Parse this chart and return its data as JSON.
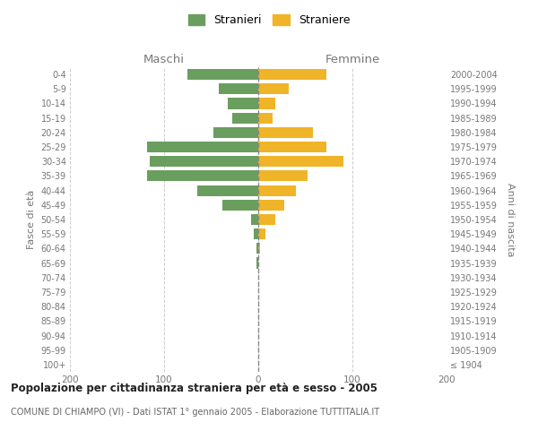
{
  "age_groups": [
    "100+",
    "95-99",
    "90-94",
    "85-89",
    "80-84",
    "75-79",
    "70-74",
    "65-69",
    "60-64",
    "55-59",
    "50-54",
    "45-49",
    "40-44",
    "35-39",
    "30-34",
    "25-29",
    "20-24",
    "15-19",
    "10-14",
    "5-9",
    "0-4"
  ],
  "birth_years": [
    "≤ 1904",
    "1905-1909",
    "1910-1914",
    "1915-1919",
    "1920-1924",
    "1925-1929",
    "1930-1934",
    "1935-1939",
    "1940-1944",
    "1945-1949",
    "1950-1954",
    "1955-1959",
    "1960-1964",
    "1965-1969",
    "1970-1974",
    "1975-1979",
    "1980-1984",
    "1985-1989",
    "1990-1994",
    "1995-1999",
    "2000-2004"
  ],
  "maschi": [
    0,
    0,
    0,
    0,
    0,
    0,
    0,
    2,
    2,
    5,
    8,
    38,
    65,
    118,
    115,
    118,
    48,
    28,
    32,
    42,
    75
  ],
  "femmine": [
    0,
    0,
    0,
    0,
    0,
    0,
    0,
    0,
    2,
    8,
    18,
    28,
    40,
    52,
    90,
    72,
    58,
    15,
    18,
    32,
    72
  ],
  "male_color": "#6a9e5e",
  "female_color": "#f0b429",
  "center_line_color": "#888888",
  "grid_color": "#cccccc",
  "title": "Popolazione per cittadinanza straniera per età e sesso - 2005",
  "subtitle": "COMUNE DI CHIAMPO (VI) - Dati ISTAT 1° gennaio 2005 - Elaborazione TUTTITALIA.IT",
  "ylabel_left": "Fasce di età",
  "ylabel_right": "Anni di nascita",
  "header_left": "Maschi",
  "header_right": "Femmine",
  "legend_male": "Stranieri",
  "legend_female": "Straniere",
  "xlim": 200,
  "bg_color": "#ffffff"
}
